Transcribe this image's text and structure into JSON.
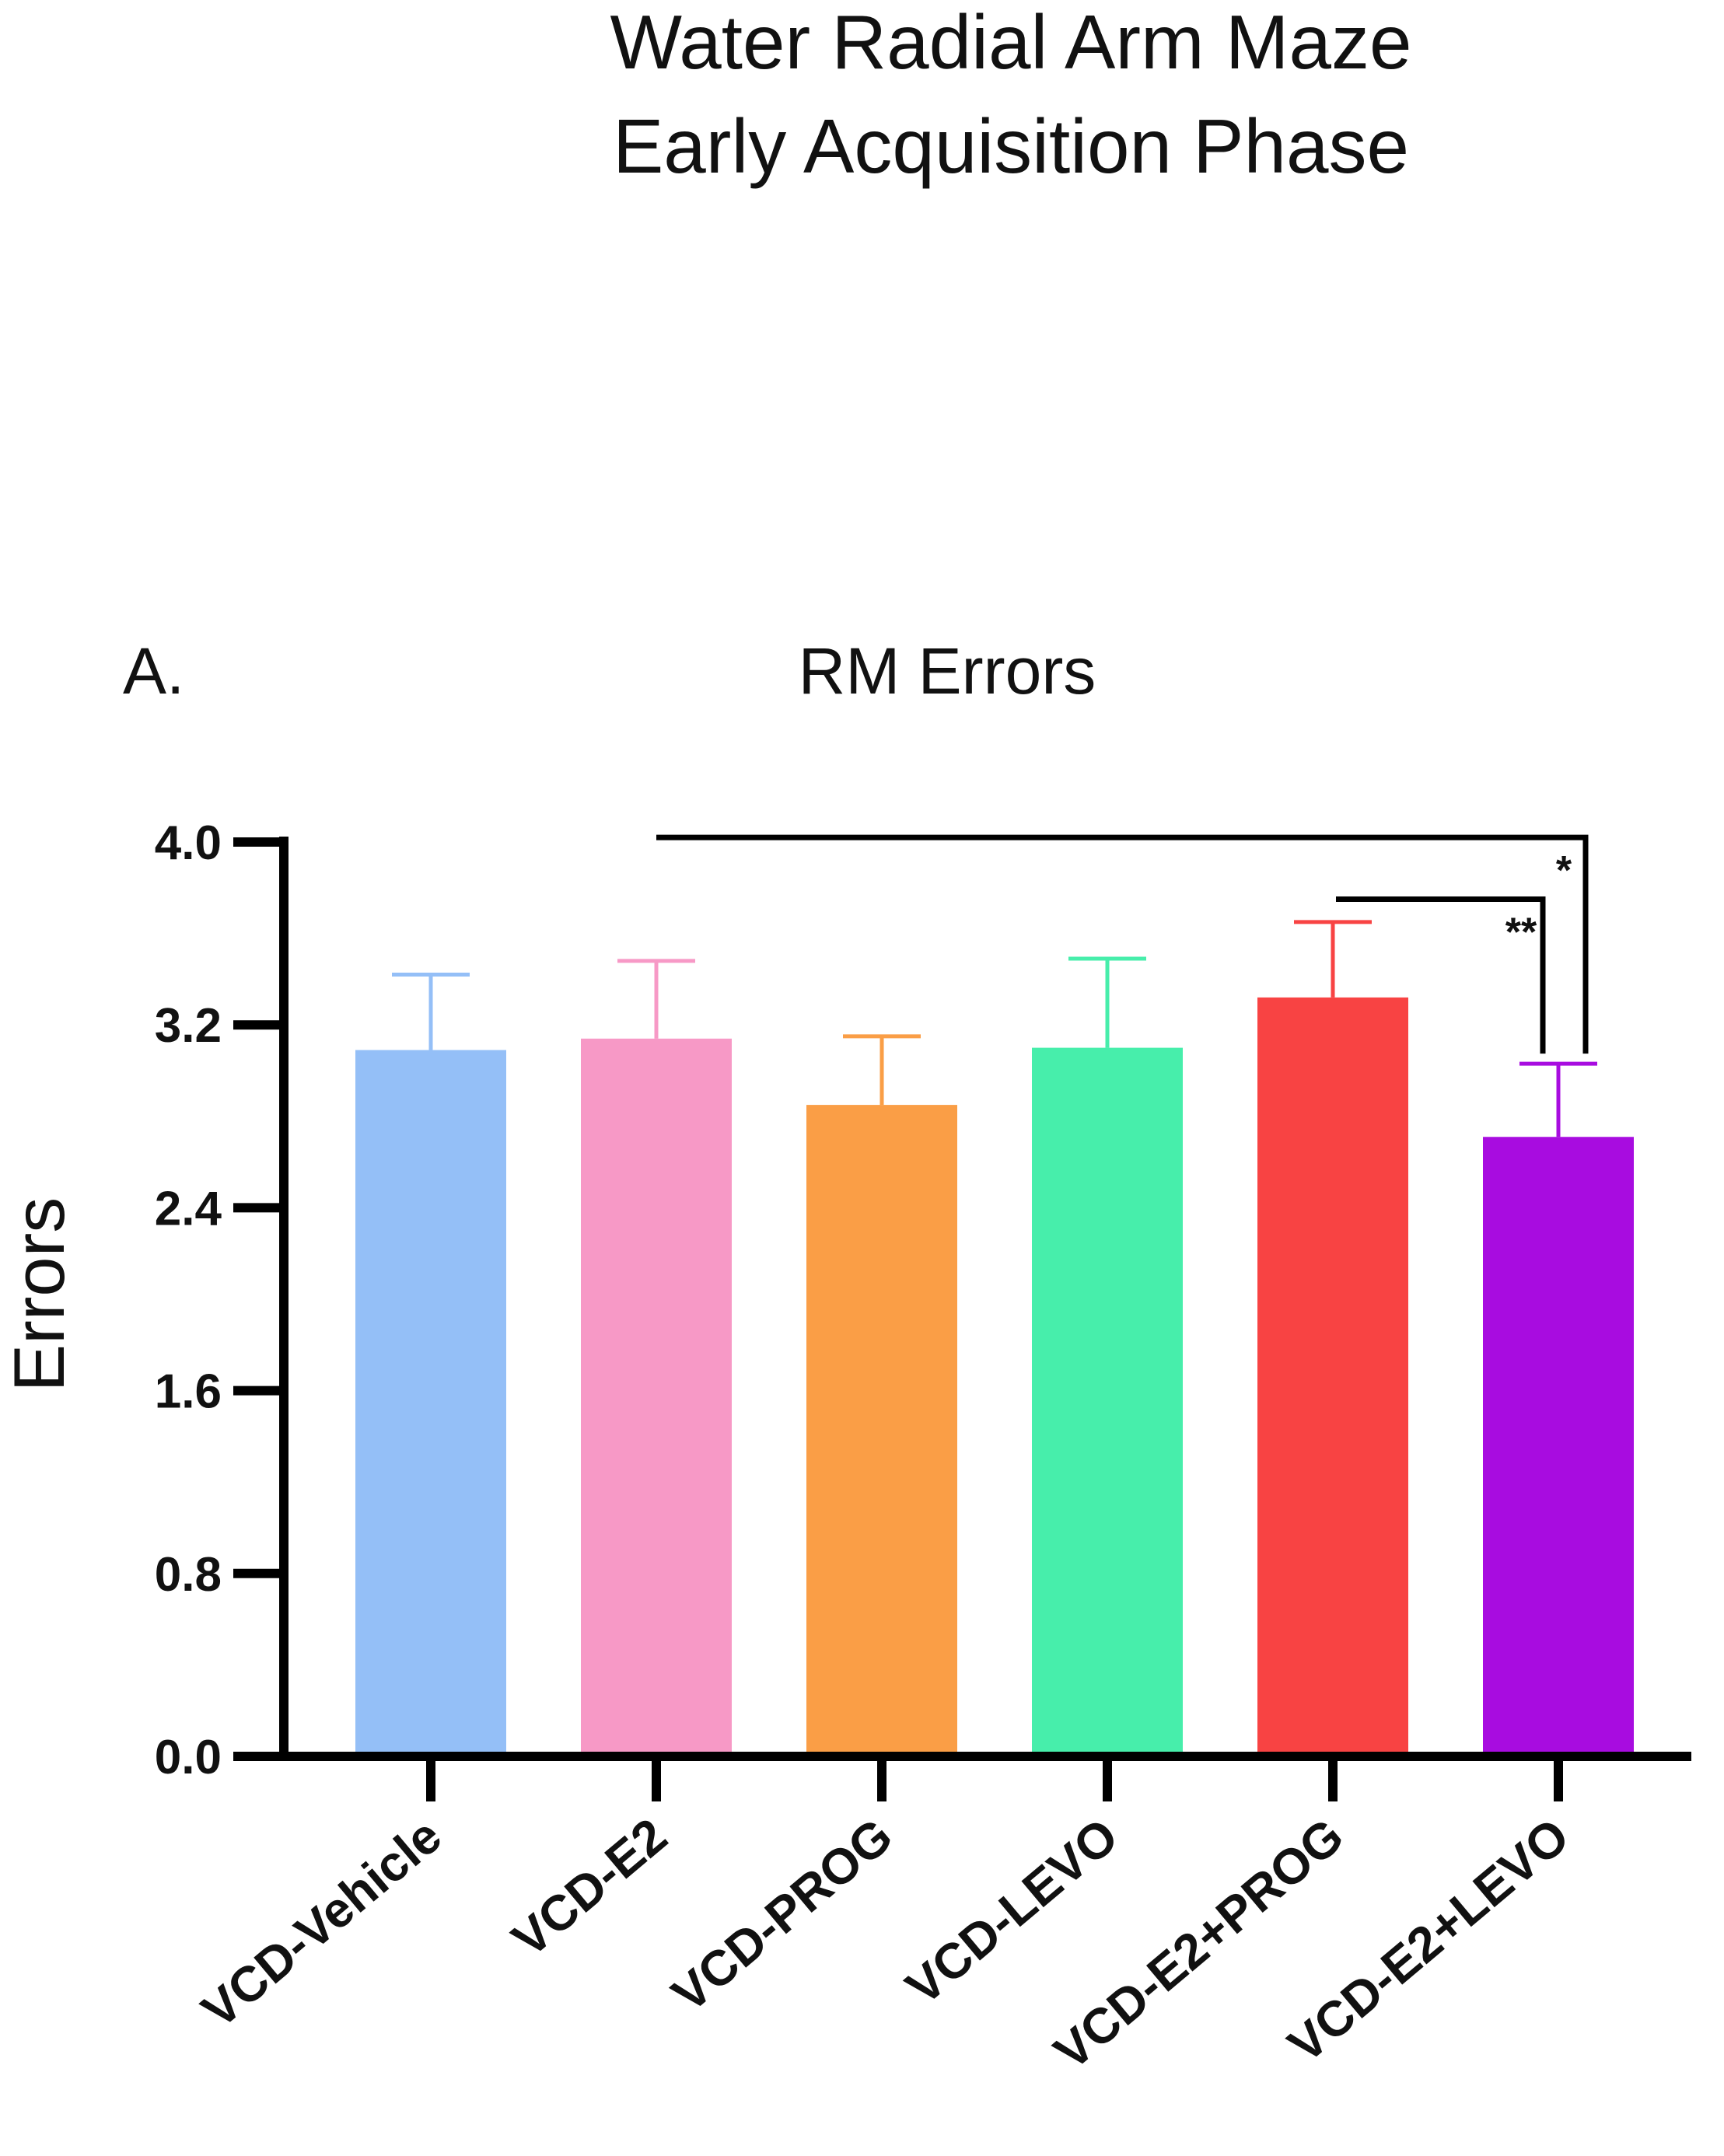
{
  "figure": {
    "title_line1": "Water Radial Arm Maze",
    "title_line2": "Early Acquisition Phase",
    "panel_label": "A."
  },
  "chart_data": {
    "type": "bar",
    "title": "RM Errors",
    "xlabel": "",
    "ylabel": "Errors",
    "ylim": [
      0,
      4.0
    ],
    "yticks": [
      0.0,
      0.8,
      1.6,
      2.4,
      3.2,
      4.0
    ],
    "ytick_labels": [
      "0.0",
      "0.8",
      "1.6",
      "2.4",
      "3.2",
      "4.0"
    ],
    "grid": false,
    "categories": [
      "VCD-Vehicle",
      "VCD-E2",
      "VCD-PROG",
      "VCD-LEVO",
      "VCD-E2+PROG",
      "VCD-E2+LEVO"
    ],
    "values": [
      3.09,
      3.14,
      2.85,
      3.1,
      3.32,
      2.71
    ],
    "error_upper": [
      0.33,
      0.34,
      0.3,
      0.39,
      0.33,
      0.32
    ],
    "colors": [
      "#94BFF7",
      "#F799C6",
      "#FA9E46",
      "#47EEAB",
      "#F84343",
      "#A80CE0"
    ],
    "significance": [
      {
        "from": "VCD-E2",
        "to": "VCD-E2+LEVO",
        "label": "*",
        "level": 4.02
      },
      {
        "from": "VCD-E2+PROG",
        "to": "VCD-E2+LEVO",
        "label": "**",
        "level": 3.75
      }
    ]
  }
}
